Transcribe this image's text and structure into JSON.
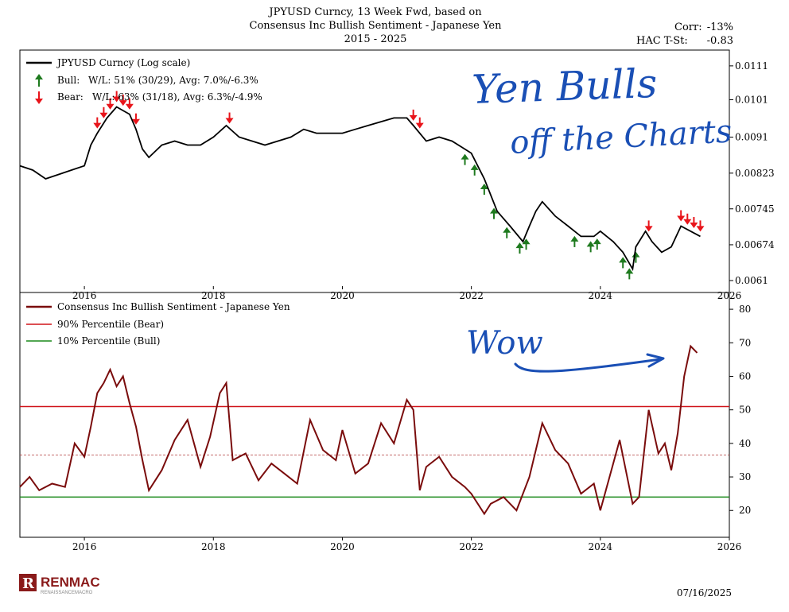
{
  "header": {
    "title_line1": "JPYUSD Curncy, 13 Week Fwd, based on",
    "title_line2": "Consensus Inc Bullish Sentiment - Japanese Yen",
    "title_line3": "2015 - 2025",
    "corr_label": "Corr:",
    "corr_value": "-13%",
    "tstat_label": "HAC T-St:",
    "tstat_value": "-0.83"
  },
  "annotations": {
    "top_handwriting_line1": "Yen Bulls",
    "top_handwriting_line2": "off the Charts",
    "bottom_handwriting": "Wow"
  },
  "footer": {
    "logo_text": "RENMAC",
    "logo_subtext": "RENAISSANCEMACRO",
    "date": "07/16/2025"
  },
  "colors": {
    "price_line": "#000000",
    "sentiment_line": "#7a0c0c",
    "bear_line": "#d0141a",
    "bull_line": "#1a8a1a",
    "bear_arrow": "#e8141a",
    "bull_arrow": "#1e7a1e",
    "median_line": "#b03a3a",
    "annotation_ink": "#1a4fb5"
  },
  "chart_data": [
    {
      "type": "line",
      "panel": "top",
      "legend": {
        "price": "JPYUSD Curncy (Log scale)",
        "bull_label": "Bull:",
        "bull_stats": "W/L: 51% (30/29), Avg: 7.0%/-6.3%",
        "bear_label": "Bear:",
        "bear_stats": "W/L: 63% (31/18), Avg: 6.3%/-4.9%"
      },
      "x_ticks": [
        "2016",
        "2018",
        "2020",
        "2022",
        "2024",
        "2026"
      ],
      "y_ticks": [
        "0.0111",
        "0.0101",
        "0.0091",
        "0.00823",
        "0.00745",
        "0.00674",
        "0.0061"
      ],
      "y_tick_values": [
        0.0111,
        0.0101,
        0.0091,
        0.00823,
        0.00745,
        0.00674,
        0.0061
      ],
      "log_scale": true,
      "xlim": [
        2015.0,
        2026.0
      ],
      "ylim": [
        0.0059,
        0.0116
      ],
      "series": [
        {
          "name": "JPYUSD Curncy (Log scale)",
          "x": [
            2015.0,
            2015.2,
            2015.4,
            2015.6,
            2015.8,
            2016.0,
            2016.1,
            2016.2,
            2016.35,
            2016.5,
            2016.6,
            2016.7,
            2016.8,
            2016.9,
            2017.0,
            2017.2,
            2017.4,
            2017.6,
            2017.8,
            2018.0,
            2018.2,
            2018.4,
            2018.6,
            2018.8,
            2019.0,
            2019.2,
            2019.4,
            2019.6,
            2019.8,
            2020.0,
            2020.2,
            2020.4,
            2020.6,
            2020.8,
            2021.0,
            2021.1,
            2021.3,
            2021.5,
            2021.7,
            2021.9,
            2022.0,
            2022.2,
            2022.4,
            2022.6,
            2022.8,
            2022.9,
            2023.0,
            2023.1,
            2023.3,
            2023.5,
            2023.7,
            2023.9,
            2024.0,
            2024.2,
            2024.35,
            2024.5,
            2024.55,
            2024.7,
            2024.8,
            2024.95,
            2025.1,
            2025.25,
            2025.4,
            2025.55
          ],
          "y": [
            0.0084,
            0.0083,
            0.0081,
            0.0082,
            0.0083,
            0.0084,
            0.0089,
            0.0092,
            0.0096,
            0.0099,
            0.0098,
            0.0097,
            0.0093,
            0.0088,
            0.0086,
            0.0089,
            0.009,
            0.0089,
            0.0089,
            0.0091,
            0.0094,
            0.0091,
            0.009,
            0.0089,
            0.009,
            0.0091,
            0.0093,
            0.0092,
            0.0092,
            0.0092,
            0.0093,
            0.0094,
            0.0095,
            0.0096,
            0.0096,
            0.0094,
            0.009,
            0.0091,
            0.009,
            0.0088,
            0.0087,
            0.0081,
            0.0074,
            0.0071,
            0.0068,
            0.0071,
            0.0074,
            0.0076,
            0.0073,
            0.0071,
            0.0069,
            0.0069,
            0.007,
            0.0068,
            0.0066,
            0.0063,
            0.0067,
            0.007,
            0.0068,
            0.0066,
            0.0067,
            0.0071,
            0.007,
            0.0069
          ]
        }
      ],
      "bear_signals_x": [
        2016.2,
        2016.3,
        2016.4,
        2016.5,
        2016.6,
        2016.7,
        2016.8,
        2018.25,
        2021.1,
        2021.2,
        2024.75,
        2025.25,
        2025.35,
        2025.45,
        2025.55
      ],
      "bull_signals_x": [
        2021.9,
        2022.05,
        2022.2,
        2022.35,
        2022.55,
        2022.75,
        2022.85,
        2023.6,
        2023.85,
        2023.95,
        2024.35,
        2024.45,
        2024.55
      ]
    },
    {
      "type": "line",
      "panel": "bottom",
      "legend": {
        "sentiment": "Consensus Inc Bullish Sentiment - Japanese Yen",
        "bear_pct": "90% Percentile (Bear)",
        "bull_pct": "10% Percentile (Bull)"
      },
      "x_ticks": [
        "2016",
        "2018",
        "2020",
        "2022",
        "2024",
        "2026"
      ],
      "y_ticks": [
        "80",
        "70",
        "60",
        "50",
        "40",
        "30",
        "20"
      ],
      "y_tick_values": [
        80,
        70,
        60,
        50,
        40,
        30,
        20
      ],
      "xlim": [
        2015.0,
        2026.0
      ],
      "ylim": [
        12,
        85
      ],
      "bear_threshold": 51,
      "bull_threshold": 24,
      "median_value": 36.5,
      "series": [
        {
          "name": "Consensus Inc Bullish Sentiment - Japanese Yen",
          "x": [
            2015.0,
            2015.15,
            2015.3,
            2015.5,
            2015.7,
            2015.85,
            2016.0,
            2016.1,
            2016.2,
            2016.3,
            2016.4,
            2016.5,
            2016.6,
            2016.7,
            2016.8,
            2016.9,
            2017.0,
            2017.2,
            2017.4,
            2017.6,
            2017.8,
            2017.95,
            2018.1,
            2018.2,
            2018.3,
            2018.5,
            2018.7,
            2018.9,
            2019.1,
            2019.3,
            2019.5,
            2019.7,
            2019.9,
            2020.0,
            2020.2,
            2020.4,
            2020.6,
            2020.8,
            2021.0,
            2021.1,
            2021.2,
            2021.3,
            2021.5,
            2021.7,
            2021.9,
            2022.0,
            2022.2,
            2022.3,
            2022.5,
            2022.7,
            2022.9,
            2023.1,
            2023.3,
            2023.5,
            2023.7,
            2023.9,
            2024.0,
            2024.2,
            2024.3,
            2024.5,
            2024.6,
            2024.75,
            2024.9,
            2025.0,
            2025.1,
            2025.2,
            2025.3,
            2025.4,
            2025.5
          ],
          "y": [
            27,
            30,
            26,
            28,
            27,
            40,
            36,
            45,
            55,
            58,
            62,
            57,
            60,
            52,
            45,
            35,
            26,
            32,
            41,
            47,
            33,
            42,
            55,
            58,
            35,
            37,
            29,
            34,
            31,
            28,
            47,
            38,
            35,
            44,
            31,
            34,
            46,
            40,
            53,
            50,
            26,
            33,
            36,
            30,
            27,
            25,
            19,
            22,
            24,
            20,
            30,
            46,
            38,
            34,
            25,
            28,
            20,
            34,
            41,
            22,
            24,
            50,
            37,
            40,
            32,
            43,
            60,
            69,
            67
          ]
        }
      ]
    }
  ]
}
